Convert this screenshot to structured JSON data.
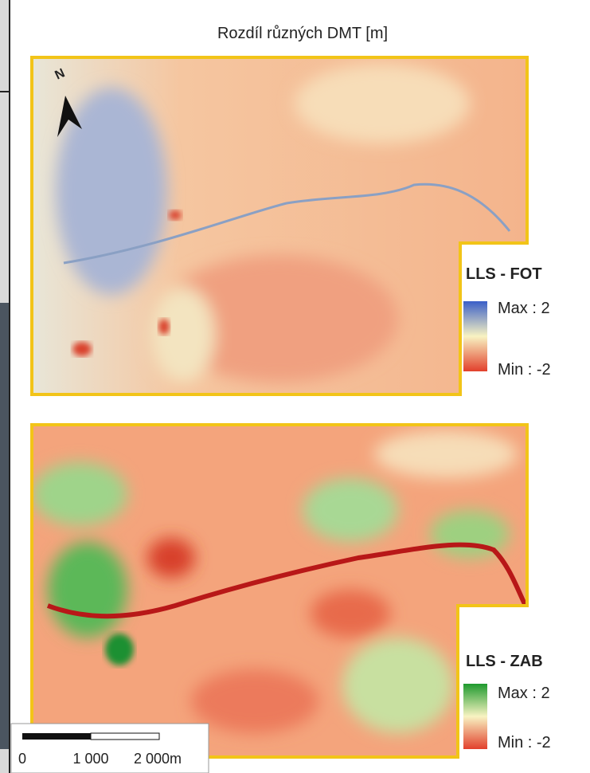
{
  "title": "Rozdíl různých DMT [m]",
  "north": "N",
  "legends": [
    {
      "title": "LLS - FOT",
      "max": "Max : 2",
      "min": "Min : -2"
    },
    {
      "title": "LLS - ZAB",
      "max": "Max : 2",
      "min": "Min : -2"
    }
  ],
  "scale_bar": {
    "labels": [
      "0",
      "1 000",
      "2 000m"
    ]
  }
}
